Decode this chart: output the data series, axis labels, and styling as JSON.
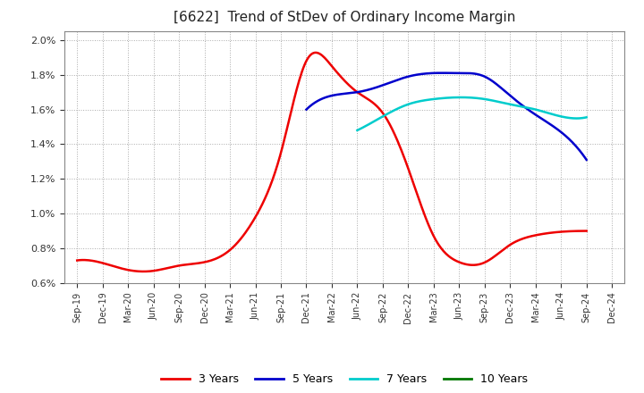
{
  "title": "[6622]  Trend of StDev of Ordinary Income Margin",
  "title_fontsize": 11,
  "background_color": "#ffffff",
  "plot_bg_color": "#ffffff",
  "grid_color": "#aaaaaa",
  "ylim": [
    0.006,
    0.0205
  ],
  "yticks": [
    0.006,
    0.008,
    0.01,
    0.012,
    0.014,
    0.016,
    0.018,
    0.02
  ],
  "x_labels": [
    "Sep-19",
    "Dec-19",
    "Mar-20",
    "Jun-20",
    "Sep-20",
    "Dec-20",
    "Mar-21",
    "Jun-21",
    "Sep-21",
    "Dec-21",
    "Mar-22",
    "Jun-22",
    "Sep-22",
    "Dec-22",
    "Mar-23",
    "Jun-23",
    "Sep-23",
    "Dec-23",
    "Mar-24",
    "Jun-24",
    "Sep-24",
    "Dec-24"
  ],
  "series": {
    "3 Years": {
      "color": "#ee0000",
      "linewidth": 1.8,
      "values": [
        0.0073,
        0.00715,
        0.00675,
        0.0067,
        0.007,
        0.0072,
        0.0079,
        0.0098,
        0.0135,
        0.0188,
        0.0185,
        0.017,
        0.0158,
        0.0126,
        0.0087,
        0.0072,
        0.00718,
        0.0082,
        0.00875,
        0.00895,
        0.009,
        null
      ]
    },
    "5 Years": {
      "color": "#0000cc",
      "linewidth": 1.8,
      "values": [
        null,
        null,
        null,
        null,
        null,
        null,
        null,
        null,
        null,
        0.016,
        0.0168,
        0.017,
        0.0174,
        0.0179,
        0.0181,
        0.0181,
        0.0179,
        0.0168,
        0.0157,
        0.0147,
        0.0131,
        null
      ]
    },
    "7 Years": {
      "color": "#00cccc",
      "linewidth": 1.8,
      "values": [
        null,
        null,
        null,
        null,
        null,
        null,
        null,
        null,
        null,
        null,
        null,
        0.0148,
        0.0156,
        0.0163,
        0.0166,
        0.0167,
        0.0166,
        0.0163,
        0.016,
        0.0156,
        0.01555,
        null
      ]
    },
    "10 Years": {
      "color": "#007700",
      "linewidth": 1.8,
      "values": [
        null,
        null,
        null,
        null,
        null,
        null,
        null,
        null,
        null,
        null,
        null,
        null,
        null,
        null,
        null,
        null,
        null,
        null,
        null,
        null,
        null,
        null
      ]
    }
  },
  "legend_labels": [
    "3 Years",
    "5 Years",
    "7 Years",
    "10 Years"
  ],
  "legend_colors": [
    "#ee0000",
    "#0000cc",
    "#00cccc",
    "#007700"
  ]
}
